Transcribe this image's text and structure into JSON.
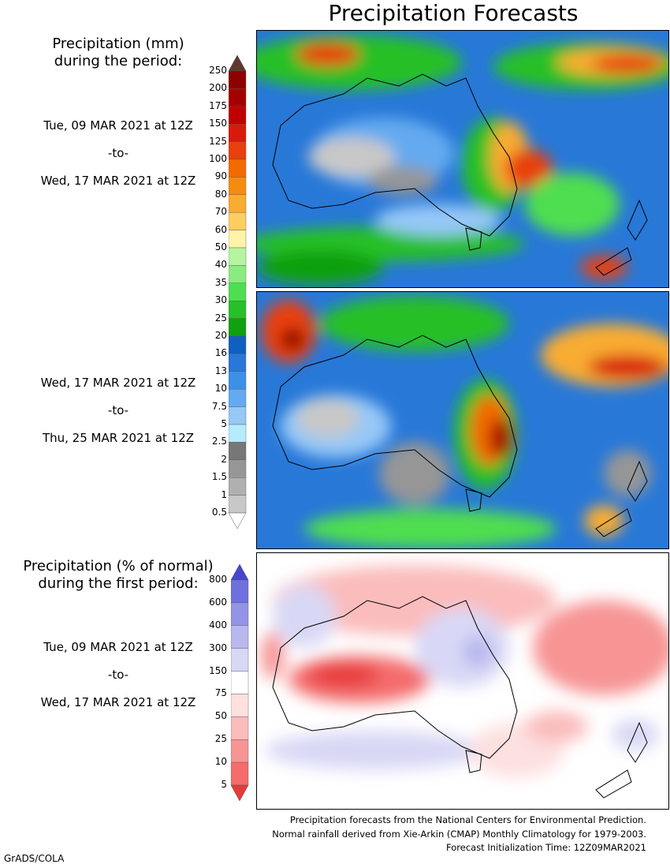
{
  "title": "Precipitation Forecasts",
  "accumulation_legend": {
    "heading_line1": "Precipitation (mm)",
    "heading_line2": "during the period:",
    "labels": [
      "250",
      "200",
      "175",
      "150",
      "125",
      "100",
      "90",
      "80",
      "70",
      "60",
      "50",
      "40",
      "35",
      "30",
      "25",
      "20",
      "16",
      "13",
      "10",
      "7.5",
      "5",
      "2.5",
      "2",
      "1.5",
      "1",
      "0.5"
    ],
    "colors": [
      "#5c3a2e",
      "#8b0000",
      "#a50000",
      "#c00000",
      "#d81a0a",
      "#e8400e",
      "#f26a00",
      "#f58c10",
      "#f8ac30",
      "#fccd60",
      "#fff3a8",
      "#b4f5a0",
      "#8aec80",
      "#50de50",
      "#28c028",
      "#10a010",
      "#1060c0",
      "#2878d8",
      "#3c90e8",
      "#64aaf0",
      "#96c8f8",
      "#b4ecfc",
      "#777777",
      "#969696",
      "#b0b0b0",
      "#c8c8c8",
      "#ffffff"
    ]
  },
  "period1": {
    "start": "Tue, 09 MAR 2021 at 12Z",
    "to": "-to-",
    "end": "Wed, 17 MAR 2021 at 12Z"
  },
  "period2": {
    "start": "Wed, 17 MAR 2021 at 12Z",
    "to": "-to-",
    "end": "Thu, 25 MAR 2021 at 12Z"
  },
  "percent_legend": {
    "heading_line1": "Precipitation (% of normal)",
    "heading_line2": "during the first period:",
    "labels": [
      "800",
      "600",
      "400",
      "300",
      "150",
      "75",
      "50",
      "25",
      "10",
      "5"
    ],
    "colors": [
      "#4646d0",
      "#7070dd",
      "#9494e6",
      "#b8b8ee",
      "#d8d8f6",
      "#ffffff",
      "#fde0e0",
      "#fbbcbc",
      "#f79494",
      "#f46c6c",
      "#e83a3a"
    ]
  },
  "period3": {
    "start": "Tue, 09 MAR 2021 at 12Z",
    "to": "-to-",
    "end": "Wed, 17 MAR 2021 at 12Z"
  },
  "footer": {
    "line1": "Precipitation forecasts from the National Centers for Environmental Prediction.",
    "line2": "Normal rainfall derived from Xie-Arkin (CMAP) Monthly Climatology for 1979-2003.",
    "line3": "Forecast Initialization Time: 12Z09MAR2021"
  },
  "credit": "GrADS/COLA"
}
